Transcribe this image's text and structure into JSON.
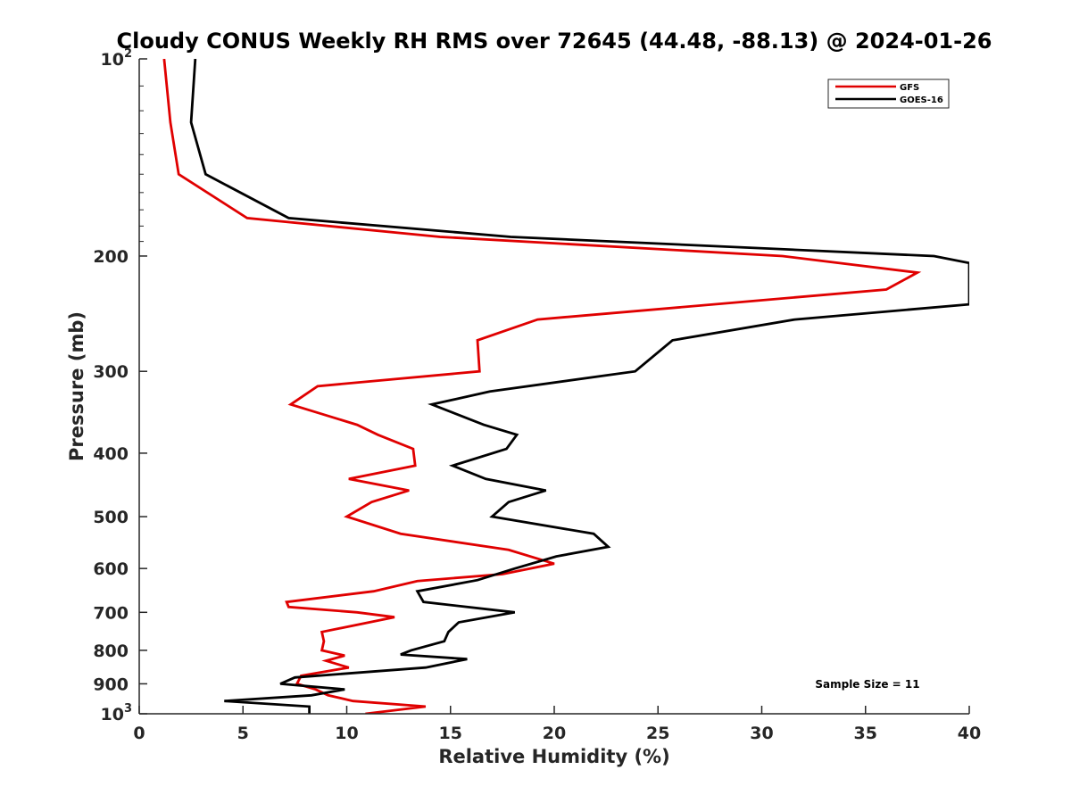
{
  "chart_data": {
    "type": "line",
    "title": "Cloudy CONUS Weekly RH RMS over 72645 (44.48, -88.13) @ 2024-01-26",
    "xlabel": "Relative Humidity (%)",
    "ylabel": "Pressure (mb)",
    "xlim": [
      0,
      40
    ],
    "ylim": [
      100,
      1000
    ],
    "yscale": "log",
    "y_reversed": true,
    "grid": false,
    "legend_position": "top-right",
    "x_ticks": [
      {
        "value": 0,
        "label": "0"
      },
      {
        "value": 5,
        "label": "5"
      },
      {
        "value": 10,
        "label": "10"
      },
      {
        "value": 15,
        "label": "15"
      },
      {
        "value": 20,
        "label": "20"
      },
      {
        "value": 25,
        "label": "25"
      },
      {
        "value": 30,
        "label": "30"
      },
      {
        "value": 35,
        "label": "35"
      },
      {
        "value": 40,
        "label": "40"
      }
    ],
    "y_ticks": [
      {
        "value": 100,
        "label": "10",
        "sup": "2"
      },
      {
        "value": 200,
        "label": "200",
        "sup": ""
      },
      {
        "value": 300,
        "label": "300",
        "sup": ""
      },
      {
        "value": 400,
        "label": "400",
        "sup": ""
      },
      {
        "value": 500,
        "label": "500",
        "sup": ""
      },
      {
        "value": 600,
        "label": "600",
        "sup": ""
      },
      {
        "value": 700,
        "label": "700",
        "sup": ""
      },
      {
        "value": 800,
        "label": "800",
        "sup": ""
      },
      {
        "value": 900,
        "label": "900",
        "sup": ""
      },
      {
        "value": 1000,
        "label": "10",
        "sup": "3"
      }
    ],
    "series": [
      {
        "name": "GFS",
        "color": "#e00000",
        "points": [
          [
            1.2,
            100
          ],
          [
            1.5,
            125
          ],
          [
            1.9,
            150
          ],
          [
            5.2,
            175
          ],
          [
            14.5,
            187
          ],
          [
            31,
            200
          ],
          [
            37.5,
            212
          ],
          [
            36,
            225
          ],
          [
            19.2,
            250
          ],
          [
            16.3,
            269
          ],
          [
            16.4,
            300
          ],
          [
            8.6,
            316
          ],
          [
            7.3,
            337
          ],
          [
            10.5,
            362
          ],
          [
            11.5,
            375
          ],
          [
            13.2,
            394
          ],
          [
            13.3,
            418
          ],
          [
            10.1,
            438
          ],
          [
            13,
            456
          ],
          [
            11.2,
            475
          ],
          [
            10,
            500
          ],
          [
            12.6,
            531
          ],
          [
            17.8,
            562
          ],
          [
            20,
            590
          ],
          [
            17.5,
            612
          ],
          [
            13.4,
            627
          ],
          [
            11.3,
            650
          ],
          [
            7.1,
            675
          ],
          [
            7.2,
            687
          ],
          [
            10.5,
            700
          ],
          [
            12.3,
            712
          ],
          [
            8.8,
            750
          ],
          [
            8.9,
            775
          ],
          [
            8.8,
            800
          ],
          [
            9.9,
            815
          ],
          [
            9,
            830
          ],
          [
            10.1,
            850
          ],
          [
            7.8,
            875
          ],
          [
            7.6,
            900
          ],
          [
            8.5,
            918
          ],
          [
            9.1,
            937
          ],
          [
            10.3,
            956
          ],
          [
            13.8,
            975
          ],
          [
            10.9,
            1000
          ]
        ]
      },
      {
        "name": "GOES-16",
        "color": "#000000",
        "points": [
          [
            2.7,
            100
          ],
          [
            2.5,
            125
          ],
          [
            3.2,
            150
          ],
          [
            7.2,
            175
          ],
          [
            17.9,
            187
          ],
          [
            38.3,
            200
          ],
          [
            40,
            205
          ],
          [
            40,
            237
          ],
          [
            31.6,
            250
          ],
          [
            25.7,
            269
          ],
          [
            23.9,
            300
          ],
          [
            16.9,
            322
          ],
          [
            14.1,
            337
          ],
          [
            16.6,
            362
          ],
          [
            18.2,
            375
          ],
          [
            17.7,
            394
          ],
          [
            15.1,
            418
          ],
          [
            16.7,
            438
          ],
          [
            19.6,
            456
          ],
          [
            17.8,
            475
          ],
          [
            17,
            500
          ],
          [
            21.9,
            531
          ],
          [
            22.6,
            556
          ],
          [
            20.1,
            575
          ],
          [
            18.1,
            600
          ],
          [
            16.3,
            625
          ],
          [
            13.4,
            650
          ],
          [
            13.7,
            675
          ],
          [
            18.1,
            700
          ],
          [
            15.4,
            725
          ],
          [
            14.9,
            750
          ],
          [
            14.7,
            775
          ],
          [
            13.1,
            800
          ],
          [
            12.6,
            812
          ],
          [
            15.8,
            825
          ],
          [
            13.8,
            850
          ],
          [
            7.5,
            880
          ],
          [
            6.8,
            900
          ],
          [
            9.9,
            918
          ],
          [
            8.3,
            937
          ],
          [
            4.1,
            956
          ],
          [
            8.2,
            975
          ],
          [
            8.2,
            1000
          ]
        ]
      }
    ],
    "annotations": [
      {
        "text": "Sample Size = 11",
        "position": "bottom-right"
      }
    ]
  }
}
